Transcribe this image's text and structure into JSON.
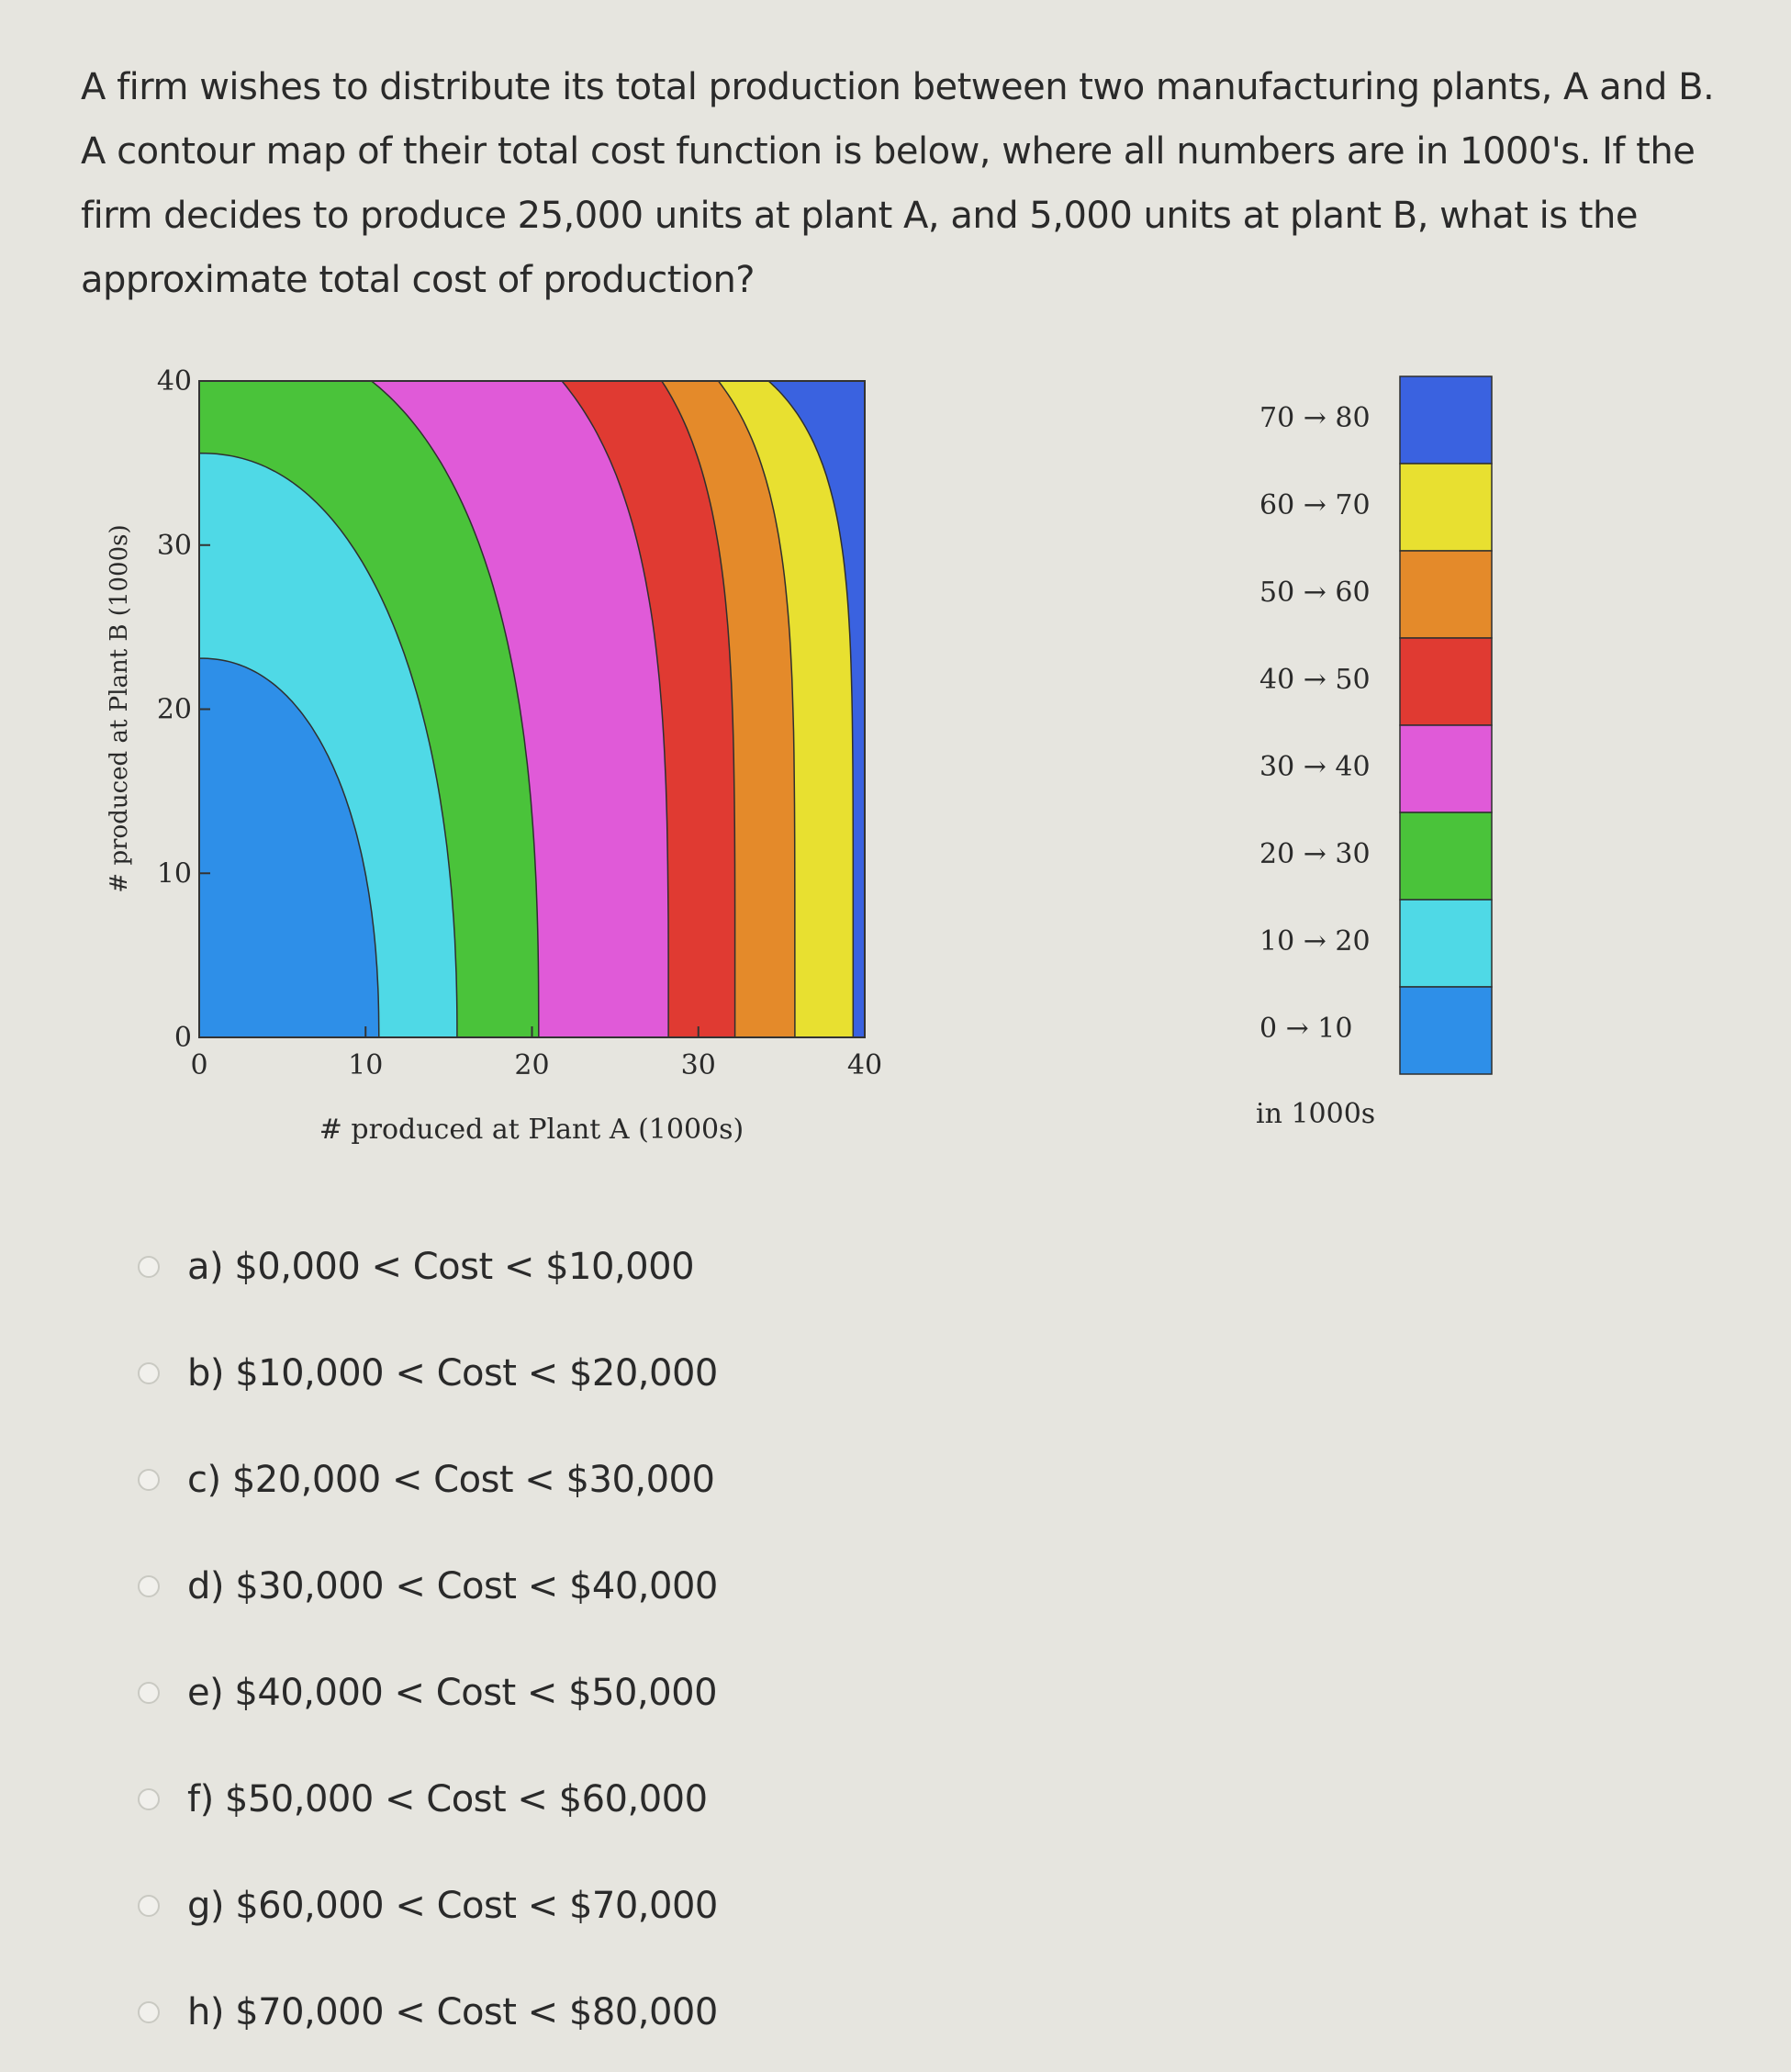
{
  "question": "A firm wishes to distribute its total production between two manufacturing plants, A and B. A contour map of their total cost function is below, where all numbers are in 1000's. If the firm decides to produce 25,000 units at plant A, and 5,000 units at plant B, what is the approximate total cost of production?",
  "chart_data": {
    "type": "contour",
    "xlabel": "# produced at Plant A (1000s)",
    "ylabel": "# produced at Plant B (1000s)",
    "xlim": [
      0,
      40
    ],
    "ylim": [
      0,
      40
    ],
    "xticks": [
      "0",
      "10",
      "20",
      "30",
      "40"
    ],
    "yticks": [
      "0",
      "10",
      "20",
      "30",
      "40"
    ],
    "levels": [
      {
        "label": "0 → 10",
        "min": 0,
        "max": 10,
        "color": "#2e8fe8"
      },
      {
        "label": "10 → 20",
        "min": 10,
        "max": 20,
        "color": "#4fd9e6"
      },
      {
        "label": "20 → 30",
        "min": 20,
        "max": 30,
        "color": "#4ac33a"
      },
      {
        "label": "30 → 40",
        "min": 30,
        "max": 40,
        "color": "#e05ad8"
      },
      {
        "label": "40 → 50",
        "min": 40,
        "max": 50,
        "color": "#e03a32"
      },
      {
        "label": "50 → 60",
        "min": 50,
        "max": 60,
        "color": "#e48a2a"
      },
      {
        "label": "60 → 70",
        "min": 60,
        "max": 70,
        "color": "#e8e030"
      },
      {
        "label": "70 → 80",
        "min": 70,
        "max": 80,
        "color": "#3a62e0"
      }
    ],
    "legend_caption": "in 1000s",
    "legend_placement": "right"
  },
  "options": [
    {
      "text": "a)  $0,000 < Cost < $10,000"
    },
    {
      "text": "b)  $10,000 < Cost < $20,000"
    },
    {
      "text": "c)  $20,000 < Cost < $30,000"
    },
    {
      "text": "d)  $30,000 < Cost < $40,000"
    },
    {
      "text": "e)  $40,000 < Cost < $50,000"
    },
    {
      "text": "f)  $50,000 < Cost < $60,000"
    },
    {
      "text": "g)  $60,000 < Cost < $70,000"
    },
    {
      "text": "h)  $70,000 < Cost < $80,000"
    }
  ]
}
